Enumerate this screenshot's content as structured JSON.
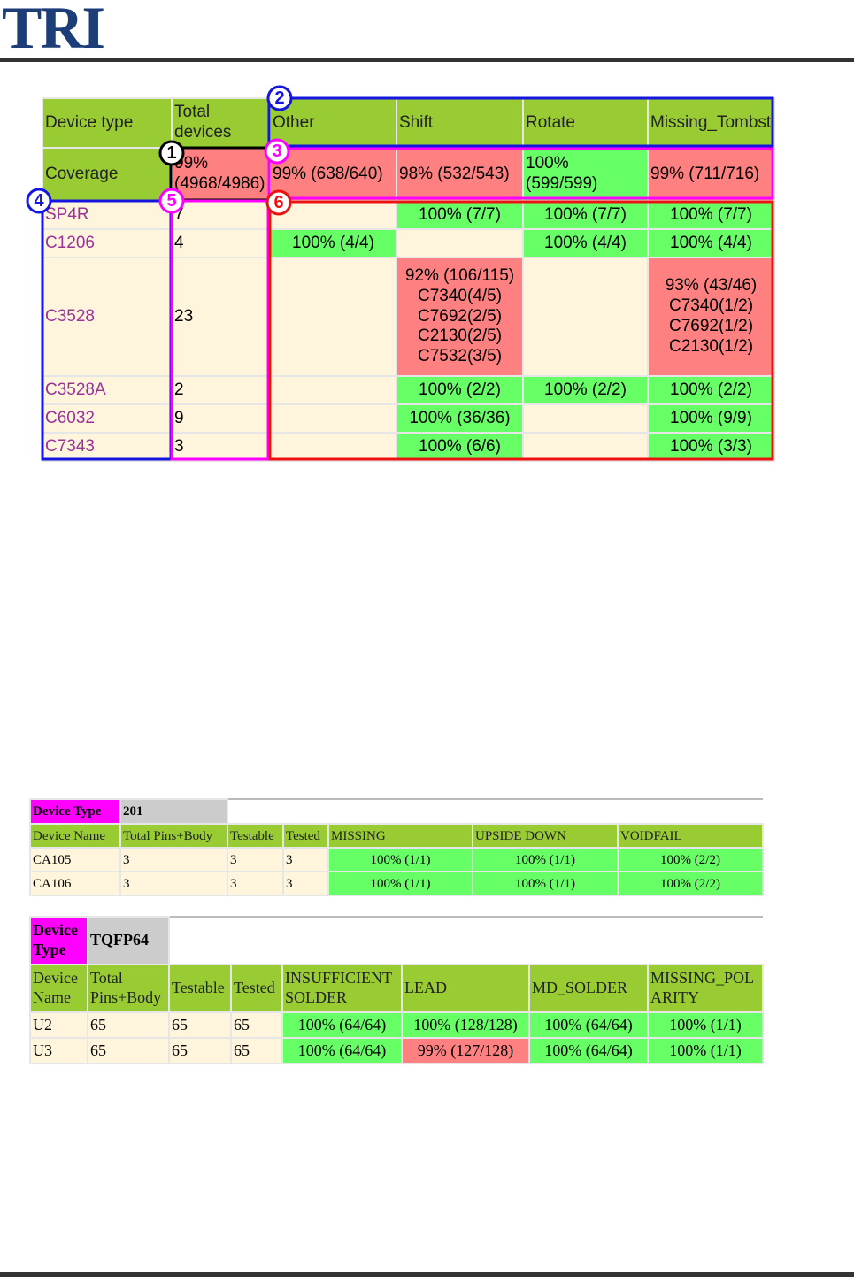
{
  "header": {
    "logo": "TRI"
  },
  "coverage_table": {
    "columns": [
      "Device type",
      "Total devices",
      "Other",
      "Shift",
      "Rotate",
      "Missing_Tombston_Billboard"
    ],
    "coverage_row": [
      "Coverage",
      "99% (4968/4986)",
      "99% (638/640)",
      "98% (532/543)",
      "100% (599/599)",
      "99% (711/716)"
    ],
    "rows": [
      [
        "SP4R",
        "7",
        null,
        "100% (7/7)",
        "100% (7/7)",
        "100% (7/7)"
      ],
      [
        "C1206",
        "4",
        "100% (4/4)",
        null,
        "100% (4/4)",
        "100% (4/4)"
      ],
      [
        "C3528",
        "23",
        null,
        [
          "92% (106/115)",
          "C7340(4/5)",
          "C7692(2/5)",
          "C2130(2/5)",
          "C7532(3/5)"
        ],
        null,
        [
          "93% (43/46)",
          "C7340(1/2)",
          "C7692(1/2)",
          "C2130(1/2)"
        ]
      ],
      [
        "C3528A",
        "2",
        null,
        "100% (2/2)",
        "100% (2/2)",
        "100% (2/2)"
      ],
      [
        "C6032",
        "9",
        null,
        "100% (36/36)",
        null,
        "100% (9/9)"
      ],
      [
        "C7343",
        "3",
        null,
        "100% (6/6)",
        null,
        "100% (3/3)"
      ]
    ]
  },
  "callouts": [
    "1",
    "2",
    "3",
    "4",
    "5",
    "6"
  ],
  "table_201": {
    "device_type_label": "Device Type",
    "device_type": "201",
    "columns": [
      "Device Name",
      "Total Pins+Body",
      "Testable",
      "Tested",
      "MISSING",
      "UPSIDE DOWN",
      "VOIDFAIL"
    ],
    "rows": [
      [
        "CA105",
        "3",
        "3",
        "3",
        "100% (1/1)",
        "100% (1/1)",
        "100% (2/2)"
      ],
      [
        "CA106",
        "3",
        "3",
        "3",
        "100% (1/1)",
        "100% (1/1)",
        "100% (2/2)"
      ]
    ]
  },
  "table_tqfp64": {
    "device_type_label": "Device Type",
    "device_type": "TQFP64",
    "columns": [
      "Device Name",
      "Total Pins+Body",
      "Testable",
      "Tested",
      "INSUFFICIENT SOLDER",
      "LEAD",
      "MD_SOLDER",
      "MISSING_POLARITY"
    ],
    "rows": [
      [
        "U2",
        "65",
        "65",
        "65",
        "100% (64/64)",
        "100% (128/128)",
        "100% (64/64)",
        "100% (1/1)"
      ],
      [
        "U3",
        "65",
        "65",
        "65",
        "100% (64/64)",
        "99% (127/128)",
        "100% (64/64)",
        "100% (1/1)"
      ]
    ]
  }
}
